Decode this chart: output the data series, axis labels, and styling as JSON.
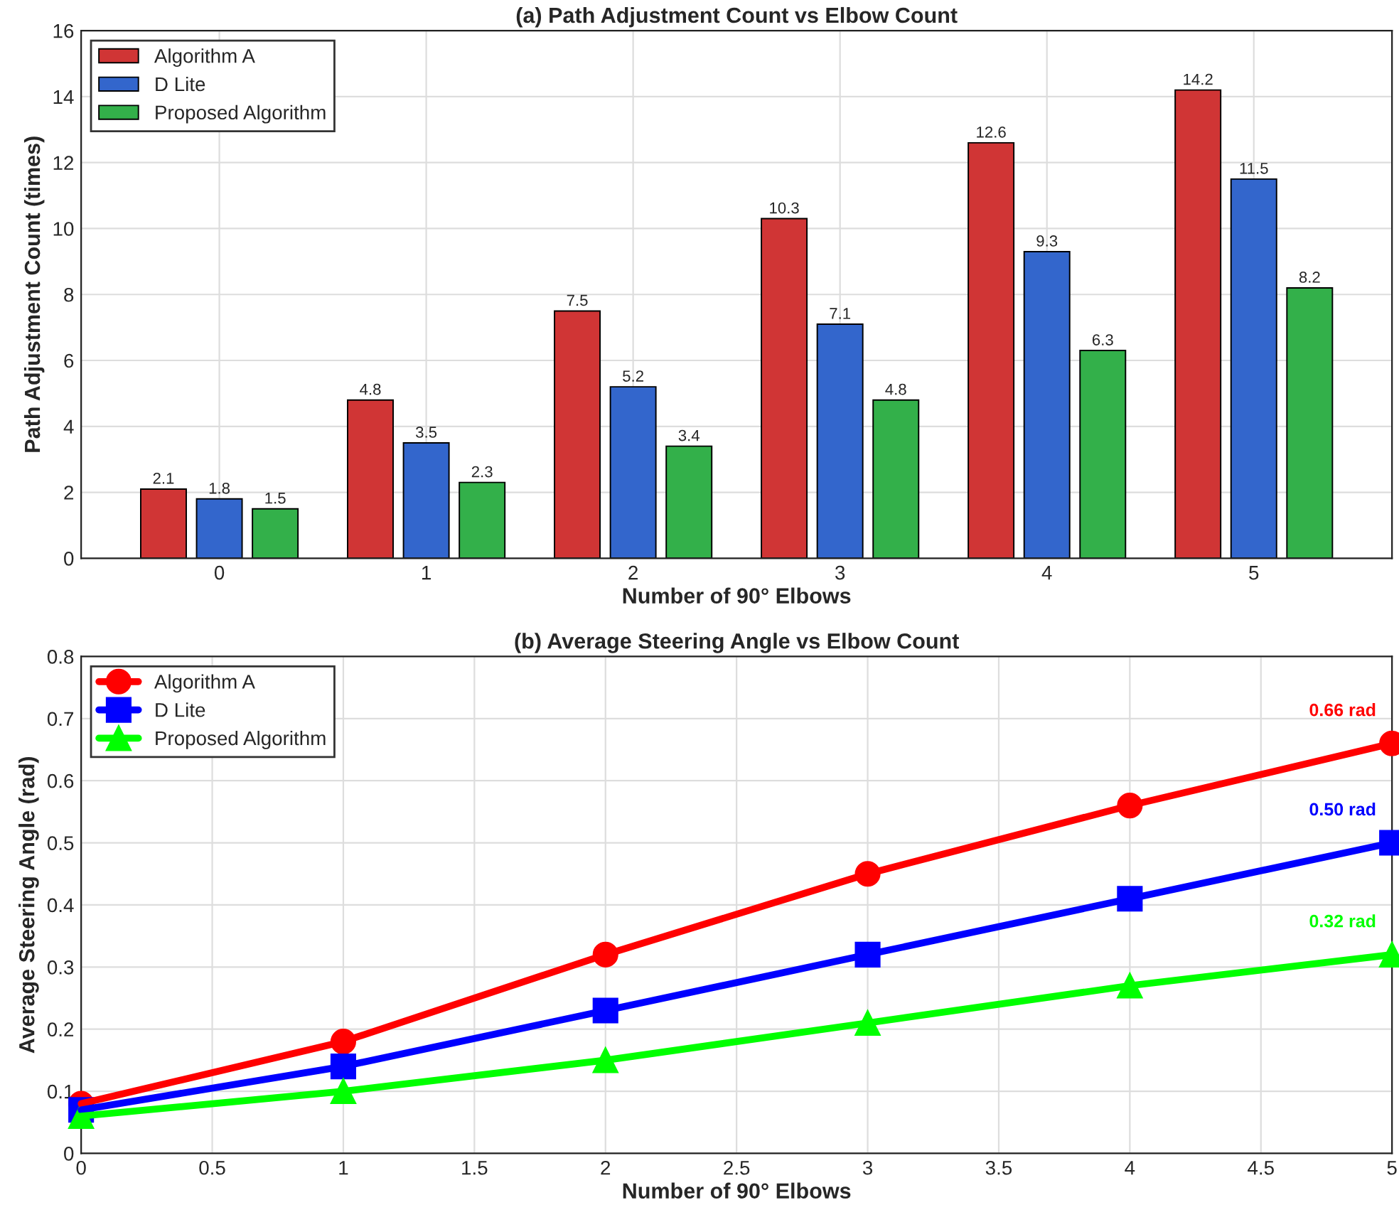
{
  "chart_data": [
    {
      "type": "bar",
      "title": "(a) Path Adjustment Count vs Elbow Count",
      "xlabel": "Number of 90° Elbows",
      "ylabel": "Path Adjustment Count (times)",
      "categories": [
        "0",
        "1",
        "2",
        "3",
        "4",
        "5"
      ],
      "series": [
        {
          "name": "Algorithm A",
          "color": "#d03535",
          "values": [
            2.1,
            4.8,
            7.5,
            10.3,
            12.6,
            14.2
          ]
        },
        {
          "name": "D Lite",
          "color": "#3366cc",
          "values": [
            1.8,
            3.5,
            5.2,
            7.1,
            9.3,
            11.5
          ]
        },
        {
          "name": "Proposed Algorithm",
          "color": "#33b04a",
          "values": [
            1.5,
            2.3,
            3.4,
            4.8,
            6.3,
            8.2
          ]
        }
      ],
      "ylim": [
        0,
        16
      ],
      "yticks": [
        0,
        2,
        4,
        6,
        8,
        10,
        12,
        14,
        16
      ],
      "grid": true,
      "legend": "top left",
      "data_labels": true
    },
    {
      "type": "line",
      "title": "(b) Average Steering Angle vs Elbow Count",
      "xlabel": "Number of 90° Elbows",
      "ylabel": "Average Steering Angle (rad)",
      "x": [
        0,
        1,
        2,
        3,
        4,
        5
      ],
      "series": [
        {
          "name": "Algorithm A",
          "color": "#ff0000",
          "marker": "circle",
          "values": [
            0.08,
            0.18,
            0.32,
            0.45,
            0.56,
            0.66
          ]
        },
        {
          "name": "D Lite",
          "color": "#0000ff",
          "marker": "square",
          "values": [
            0.07,
            0.14,
            0.23,
            0.32,
            0.41,
            0.5
          ]
        },
        {
          "name": "Proposed Algorithm",
          "color": "#00ff00",
          "marker": "triangle",
          "values": [
            0.06,
            0.1,
            0.15,
            0.21,
            0.27,
            0.32
          ]
        }
      ],
      "xlim": [
        0,
        5
      ],
      "xticks": [
        0,
        0.5,
        1,
        1.5,
        2,
        2.5,
        3,
        3.5,
        4,
        4.5,
        5
      ],
      "ylim": [
        0,
        0.8
      ],
      "yticks": [
        0,
        0.1,
        0.2,
        0.3,
        0.4,
        0.5,
        0.6,
        0.7,
        0.8
      ],
      "grid": true,
      "legend": "top left",
      "line_style": "solid",
      "annotations": [
        "0.66 rad",
        "0.50 rad",
        "0.32 rad"
      ]
    }
  ]
}
